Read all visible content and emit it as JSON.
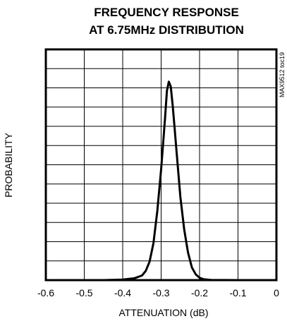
{
  "chart_data": {
    "type": "line",
    "title_lines": [
      "FREQUENCY RESPONSE",
      "AT 6.75MHz DISTRIBUTION"
    ],
    "xlabel": "ATTENUATION (dB)",
    "ylabel": "PROBABILITY",
    "figure_id": "MAX9512 toc19",
    "xlim": [
      -0.6,
      0
    ],
    "x_ticks": [
      "-0.6",
      "-0.5",
      "-0.4",
      "-0.3",
      "-0.2",
      "-0.1",
      "0"
    ],
    "y_ticks": [],
    "grid": true,
    "x_gridlines": 6,
    "y_gridlines": 12,
    "ylim": [
      0,
      1
    ],
    "series": [
      {
        "x": [
          -0.6,
          -0.45,
          -0.4,
          -0.37,
          -0.35,
          -0.34,
          -0.33,
          -0.32,
          -0.31,
          -0.3,
          -0.29,
          -0.285,
          -0.28,
          -0.275,
          -0.27,
          -0.265,
          -0.26,
          -0.25,
          -0.24,
          -0.23,
          -0.22,
          -0.21,
          -0.2,
          -0.19,
          -0.17,
          -0.1,
          0.0
        ],
        "y": [
          0.0,
          0.0,
          0.002,
          0.008,
          0.02,
          0.04,
          0.08,
          0.16,
          0.3,
          0.48,
          0.7,
          0.82,
          0.86,
          0.84,
          0.76,
          0.66,
          0.56,
          0.36,
          0.22,
          0.12,
          0.055,
          0.025,
          0.01,
          0.004,
          0.001,
          0.0,
          0.0
        ]
      }
    ],
    "colors": {
      "line": "#000000",
      "grid": "#000000",
      "background": "#ffffff"
    }
  }
}
